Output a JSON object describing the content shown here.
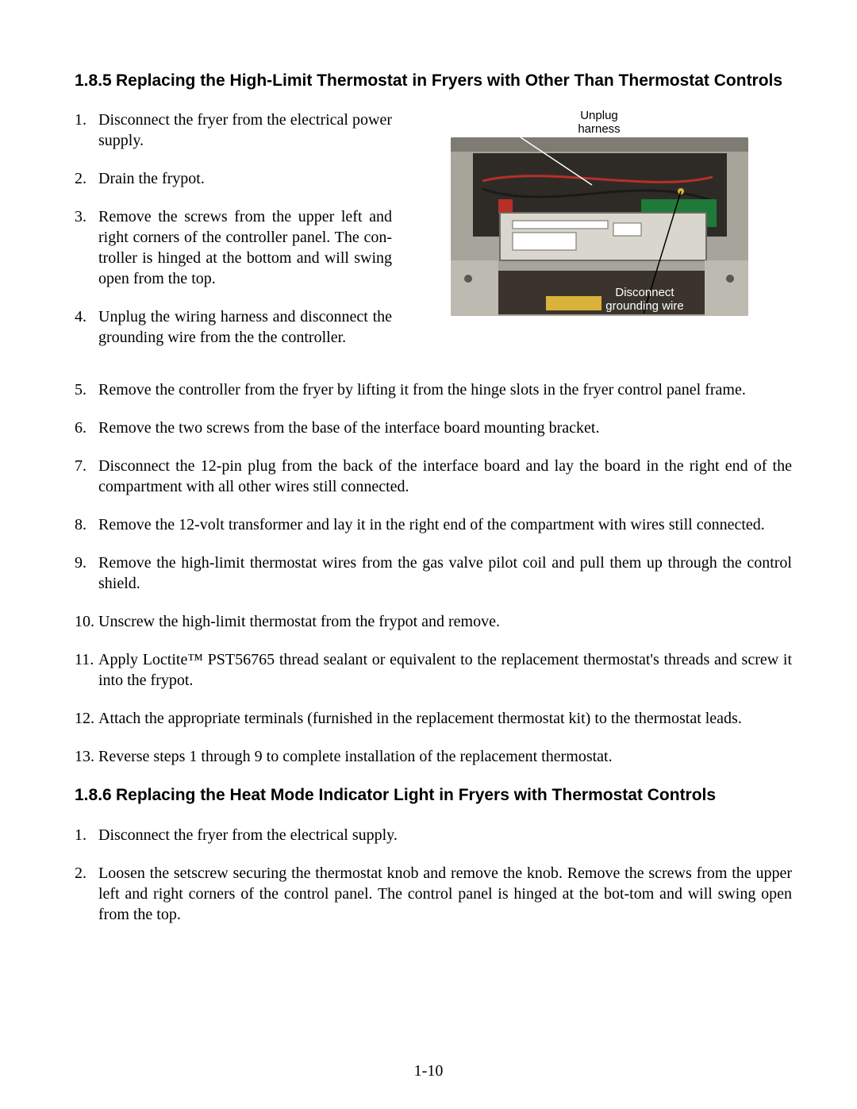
{
  "page_number": "1-10",
  "section1": {
    "number": "1.8.5",
    "title": "Replacing the High-Limit Thermostat in Fryers with Other Than Thermostat Controls",
    "col_steps": [
      "Disconnect the fryer from the electrical power supply.",
      "Drain the frypot.",
      "Remove the screws from the upper left and right corners of the controller panel.  The con-troller is hinged at the bottom and will swing open from the top.",
      "Unplug the wiring harness and disconnect the grounding wire from the the controller."
    ],
    "full_steps": [
      "Remove the controller from the fryer by lifting it from the hinge slots in the fryer control panel frame.",
      "Remove the two screws from the base of the interface board mounting bracket.",
      "Disconnect the 12-pin plug from the back of the interface board and lay the board in the right end of the compartment with all other wires still connected.",
      "Remove the 12-volt transformer and lay it in the right end of the compartment with wires still connected.",
      "Remove the high-limit thermostat wires from the gas valve pilot coil and pull them up through the control shield.",
      "Unscrew the high-limit thermostat from the frypot and remove.",
      "Apply Loctite™ PST56765 thread sealant or equivalent to the replacement thermostat's threads and screw it into the frypot.",
      "Attach the appropriate terminals (furnished in the replacement thermostat kit) to the thermostat leads.",
      "Reverse steps 1 through 9 to complete installation of the replacement thermostat."
    ],
    "figure": {
      "caption_top": "Unplug\nharness",
      "caption_bottom": "Disconnect\ngrounding wire",
      "colors": {
        "outer_metal": "#a7a49c",
        "inner_dark": "#2e2b27",
        "board": "#d9d7cd",
        "pcb": "#1f7a3a",
        "wire_red": "#b63028",
        "wire_black": "#1a1a1a",
        "sticker_yellow": "#d9b23a",
        "screw": "#5a574f",
        "leader": "#ffffff",
        "leader2": "#000000"
      }
    }
  },
  "section2": {
    "number": "1.8.6",
    "title": "Replacing the Heat Mode Indicator Light in Fryers with Thermostat Controls",
    "steps": [
      "Disconnect the fryer from the electrical supply.",
      "Loosen the setscrew securing the thermostat knob and remove the knob. Remove the screws from the upper left and right corners of the control panel. The control panel is hinged at the bot-tom and will swing open from the top."
    ]
  }
}
